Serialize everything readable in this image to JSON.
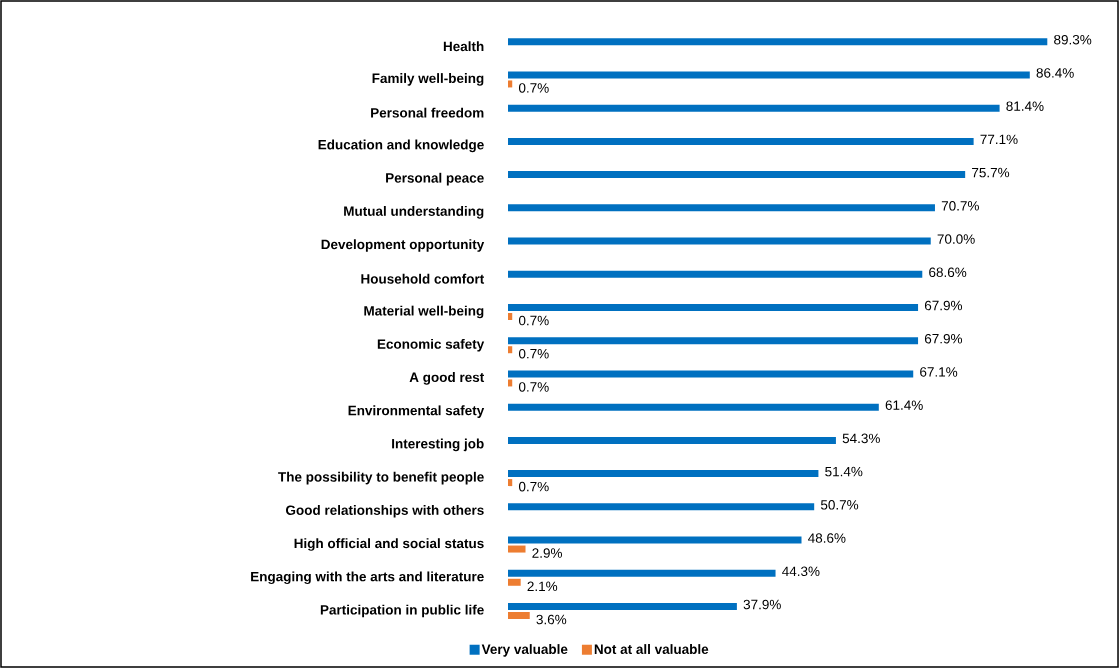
{
  "chart_data": {
    "type": "bar",
    "orientation": "horizontal",
    "legend": "bottom",
    "categories": [
      "Health",
      "Family well-being",
      "Personal freedom",
      "Education and knowledge",
      "Personal peace",
      "Mutual understanding",
      "Development   opportunity",
      "Household comfort",
      "Material well-being",
      "Economic safety",
      "A good rest",
      "Environmental safety",
      "Interesting job",
      "The possibility to benefit people",
      "Good relationships with others",
      "High official and social status",
      "Engaging with the arts and literature",
      "Participation in public life"
    ],
    "series": [
      {
        "name": "Very valuable",
        "color": "#0070c0",
        "values": [
          89.3,
          86.4,
          81.4,
          77.1,
          75.7,
          70.7,
          70.0,
          68.6,
          67.9,
          67.9,
          67.1,
          61.4,
          54.3,
          51.4,
          50.7,
          48.6,
          44.3,
          37.9
        ],
        "value_labels": [
          "89.3%",
          "86.4%",
          "81.4%",
          "77.1%",
          "75.7%",
          "70.7%",
          "70.0%",
          "68.6%",
          "67.9%",
          "67.9%",
          "67.1%",
          "61.4%",
          "54.3%",
          "51.4%",
          "50.7%",
          "48.6%",
          "44.3%",
          "37.9%"
        ]
      },
      {
        "name": "Not at all valuable",
        "color": "#ed7d31",
        "values": [
          null,
          0.7,
          null,
          null,
          null,
          null,
          null,
          null,
          0.7,
          0.7,
          0.7,
          null,
          null,
          0.7,
          null,
          2.9,
          2.1,
          3.6
        ],
        "value_labels": [
          null,
          "0.7%",
          null,
          null,
          null,
          null,
          null,
          null,
          "0.7%",
          "0.7%",
          "0.7%",
          null,
          null,
          "0.7%",
          null,
          "2.9%",
          "2.1%",
          "3.6%"
        ]
      }
    ]
  }
}
